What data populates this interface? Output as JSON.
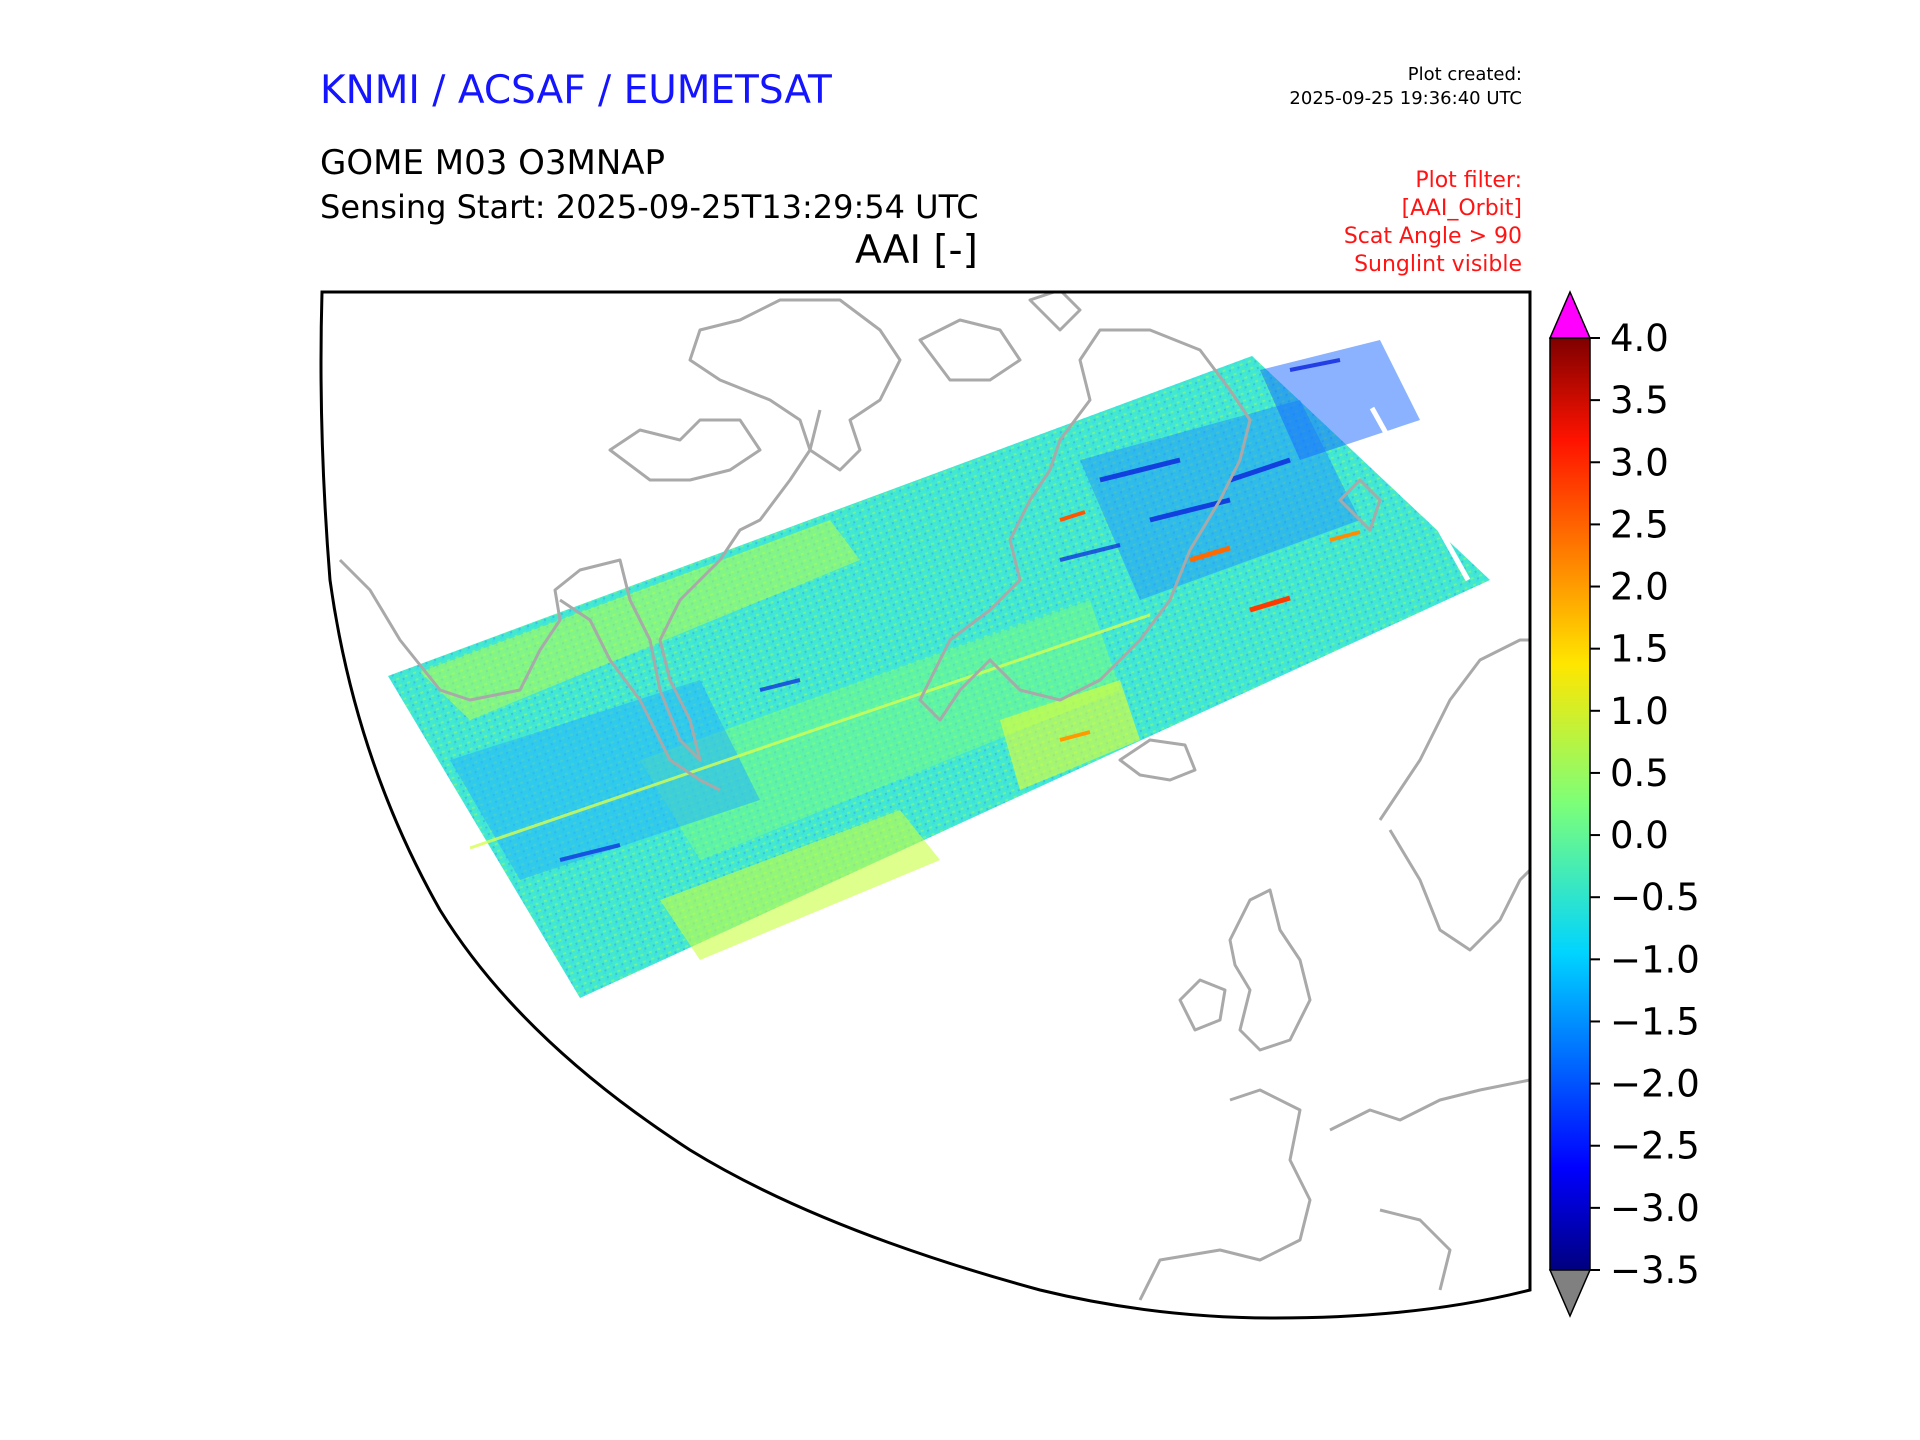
{
  "header": {
    "agency": "KNMI / ACSAF / EUMETSAT",
    "created_label": "Plot created:",
    "created_time": "2025-09-25 19:36:40 UTC",
    "product": "GOME M03 O3MNAP",
    "sensing": "Sensing Start: 2025-09-25T13:29:54 UTC",
    "variable": "AAI [-]",
    "filters": [
      "Plot filter:",
      "[AAI_Orbit]",
      "Scat Angle > 90",
      "Sunglint visible"
    ]
  },
  "colors": {
    "coastline": "#a9a9a9",
    "extend_high": "#ff00ff",
    "extend_low": "#808080",
    "agency_text": "#1414ff",
    "filter_text": "#ff1414"
  },
  "colorbar": {
    "min": -3.5,
    "max": 4.0,
    "ticks": [
      "4.0",
      "3.5",
      "3.0",
      "2.5",
      "2.0",
      "1.5",
      "1.0",
      "0.5",
      "0.0",
      "−0.5",
      "−1.0",
      "−1.5",
      "−2.0",
      "−2.5",
      "−3.0",
      "−3.5"
    ]
  },
  "swath": {
    "typical_value_range": [
      -1.5,
      1.5
    ]
  }
}
